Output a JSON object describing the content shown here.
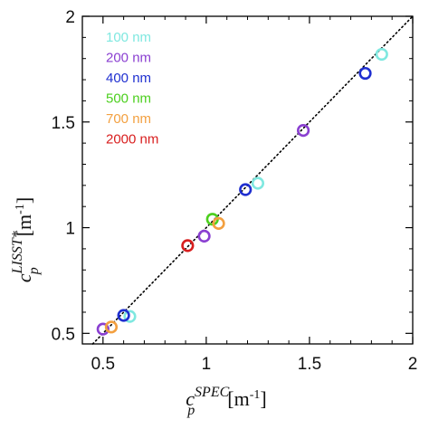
{
  "chart_data": {
    "type": "scatter",
    "title": "",
    "xlabel": {
      "base": "c",
      "sub": "p",
      "sup": "SPEC",
      "unit": "[m",
      "unit_sup": "-1",
      "unit_close": "]"
    },
    "ylabel": {
      "base": "c",
      "sub": "p",
      "sup": "LISST*",
      "unit": "[m",
      "unit_sup": "-1",
      "unit_close": "]"
    },
    "xlim": [
      0.4,
      2.0
    ],
    "ylim": [
      0.45,
      2.0
    ],
    "xticks": [
      0.5,
      1,
      1.5,
      2
    ],
    "xtick_labels": [
      "0.5",
      "1",
      "1.5",
      "2"
    ],
    "yticks": [
      0.5,
      1,
      1.5,
      2
    ],
    "ytick_labels": [
      "0.5",
      "1",
      "1.5",
      "2"
    ],
    "reference_line": {
      "type": "1:1",
      "style": "dotted",
      "color": "#000000"
    },
    "legend_position": "top-left",
    "series": [
      {
        "name": "100 nm",
        "color": "#7fe8e0",
        "x": [
          0.63,
          1.25,
          1.85
        ],
        "y": [
          0.58,
          1.21,
          1.82
        ]
      },
      {
        "name": "200 nm",
        "color": "#8a3fd1",
        "x": [
          0.5,
          0.99,
          1.47
        ],
        "y": [
          0.52,
          0.96,
          1.46
        ]
      },
      {
        "name": "400 nm",
        "color": "#1f2fd0",
        "x": [
          0.6,
          1.19,
          1.77
        ],
        "y": [
          0.585,
          1.18,
          1.73
        ]
      },
      {
        "name": "500 nm",
        "color": "#4ccf1e",
        "x": [
          1.03
        ],
        "y": [
          1.04
        ]
      },
      {
        "name": "700 nm",
        "color": "#f3a040",
        "x": [
          0.54,
          1.06
        ],
        "y": [
          0.53,
          1.02
        ]
      },
      {
        "name": "2000 nm",
        "color": "#d81e1e",
        "x": [
          0.91
        ],
        "y": [
          0.915
        ]
      }
    ]
  }
}
